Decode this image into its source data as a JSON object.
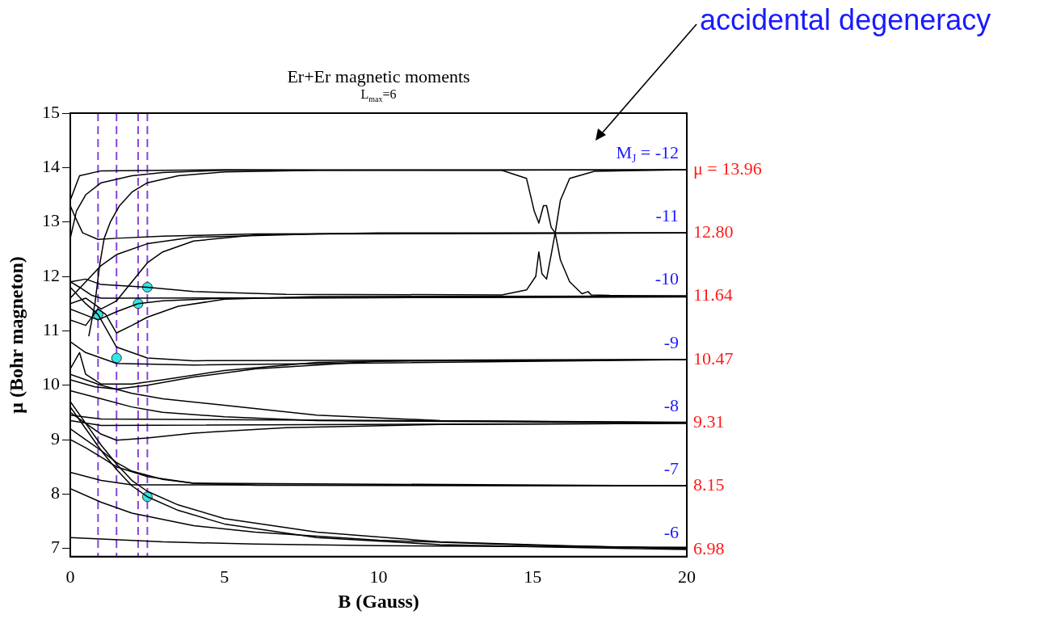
{
  "chart_data": {
    "type": "line",
    "title": "Er+Er magnetic moments",
    "subtitle": "L$_{max}$=6",
    "xlabel": "B (Gauss)",
    "ylabel": "μ (Bohr magneton)",
    "xlim": [
      0,
      20
    ],
    "xticks": [
      0,
      5,
      10,
      15,
      20
    ],
    "ylim": [
      6.85,
      15
    ],
    "yticks": [
      7,
      8,
      9,
      10,
      11,
      12,
      13,
      14,
      15
    ],
    "y2lim": [
      6.85,
      15
    ],
    "y2ticks": [
      {
        "value": 13.96,
        "label": "μ = 13.96"
      },
      {
        "value": 12.8,
        "label": "12.80"
      },
      {
        "value": 11.64,
        "label": "11.64"
      },
      {
        "value": 10.47,
        "label": "10.47"
      },
      {
        "value": 9.31,
        "label": "9.31"
      },
      {
        "value": 8.15,
        "label": "8.15"
      },
      {
        "value": 6.98,
        "label": "6.98"
      }
    ],
    "grid": false,
    "legend": false,
    "marker": "none",
    "line_style": "solid",
    "series": [
      {
        "color": "#000000",
        "x": [
          0,
          0.3,
          1,
          5,
          14,
          14.8,
          15.05,
          15.2,
          15.35,
          15.45,
          15.6,
          15.73,
          15.9,
          16.2,
          16.6,
          16.8,
          16.9,
          17.5,
          20
        ],
        "values": [
          13.4,
          13.85,
          13.94,
          13.96,
          13.95,
          13.8,
          13.2,
          12.98,
          13.3,
          13.3,
          12.9,
          12.8,
          12.3,
          11.9,
          11.68,
          11.72,
          11.66,
          11.65,
          11.64
        ]
      },
      {
        "color": "#000000",
        "x": [
          0,
          0.5,
          1,
          2.5,
          4,
          7,
          14,
          14.8,
          15.1,
          15.2,
          15.3,
          15.45,
          15.6,
          15.73,
          15.9,
          16.2,
          17,
          20
        ],
        "values": [
          11.9,
          11.95,
          11.85,
          11.8,
          11.72,
          11.67,
          11.66,
          11.75,
          12.0,
          12.45,
          12.05,
          11.95,
          12.4,
          12.8,
          13.4,
          13.8,
          13.93,
          13.96
        ]
      },
      {
        "color": "#000000",
        "x": [
          0,
          0.2,
          0.5,
          1,
          2,
          3,
          5,
          20
        ],
        "values": [
          12.7,
          13.2,
          13.5,
          13.72,
          13.85,
          13.91,
          13.95,
          13.96
        ]
      },
      {
        "color": "#000000",
        "x": [
          0.6,
          0.8,
          0.95,
          1.1,
          1.3,
          1.6,
          2,
          2.5,
          3.5,
          5,
          8,
          20
        ],
        "values": [
          10.9,
          11.5,
          12.2,
          12.7,
          13.0,
          13.3,
          13.55,
          13.72,
          13.85,
          13.92,
          13.95,
          13.96
        ]
      },
      {
        "color": "#000000",
        "x": [
          0,
          0.15,
          0.4,
          0.9,
          1.5,
          3,
          6,
          20
        ],
        "values": [
          13.3,
          13.1,
          12.8,
          12.68,
          12.7,
          12.74,
          12.78,
          12.8
        ]
      },
      {
        "color": "#000000",
        "x": [
          0,
          0.5,
          1,
          1.5,
          2.5,
          4,
          8,
          20
        ],
        "values": [
          11.6,
          11.9,
          12.2,
          12.4,
          12.6,
          12.72,
          12.78,
          12.8
        ]
      },
      {
        "color": "#000000",
        "x": [
          0,
          0.5,
          1,
          1.5,
          2,
          2.5,
          3,
          4,
          6,
          10,
          20
        ],
        "values": [
          11.5,
          11.6,
          11.4,
          11.55,
          11.9,
          12.25,
          12.45,
          12.65,
          12.76,
          12.8,
          12.8
        ]
      },
      {
        "color": "#000000",
        "x": [
          0,
          0.5,
          0.9,
          1.15,
          1.5,
          2,
          2.5,
          3.5,
          5,
          8,
          20
        ],
        "values": [
          11.2,
          11.1,
          11.4,
          11.3,
          10.96,
          11.1,
          11.25,
          11.45,
          11.58,
          11.63,
          11.64
        ]
      },
      {
        "color": "#000000",
        "x": [
          0,
          0.3,
          0.7,
          1,
          20
        ],
        "values": [
          11.9,
          11.8,
          11.65,
          11.6,
          11.62
        ]
      },
      {
        "color": "#000000",
        "x": [
          0,
          0.9,
          1.5,
          2.2,
          3,
          5,
          20
        ],
        "values": [
          11.4,
          11.2,
          11.35,
          11.5,
          11.55,
          11.6,
          11.63
        ]
      },
      {
        "color": "#000000",
        "x": [
          0,
          0.5,
          0.9,
          1.2,
          1.5,
          2.5,
          4,
          20
        ],
        "values": [
          11.8,
          11.5,
          11.3,
          11.0,
          10.7,
          10.5,
          10.45,
          10.47
        ]
      },
      {
        "color": "#000000",
        "x": [
          0,
          0.5,
          1.5,
          4,
          20
        ],
        "values": [
          10.8,
          10.6,
          10.4,
          10.37,
          10.47
        ]
      },
      {
        "color": "#000000",
        "x": [
          0,
          0.3,
          0.5,
          1,
          2,
          3,
          5,
          8,
          12,
          20
        ],
        "values": [
          10.3,
          10.6,
          10.2,
          10.02,
          10.02,
          10.1,
          10.27,
          10.42,
          10.46,
          10.47
        ]
      },
      {
        "color": "#000000",
        "x": [
          0,
          0.8,
          1.5,
          2.5,
          4,
          6,
          10,
          20
        ],
        "values": [
          10.1,
          9.97,
          9.93,
          10.0,
          10.15,
          10.3,
          10.44,
          10.47
        ]
      },
      {
        "color": "#000000",
        "x": [
          0,
          1,
          2,
          3,
          5,
          8,
          12,
          20
        ],
        "values": [
          10.2,
          10.0,
          9.85,
          9.75,
          9.63,
          9.45,
          9.35,
          9.31
        ]
      },
      {
        "color": "#000000",
        "x": [
          0,
          1,
          2,
          3,
          5,
          8,
          20
        ],
        "values": [
          9.9,
          9.75,
          9.6,
          9.5,
          9.42,
          9.35,
          9.31
        ]
      },
      {
        "color": "#000000",
        "x": [
          0,
          1,
          20
        ],
        "values": [
          9.45,
          9.38,
          9.32
        ]
      },
      {
        "color": "#000000",
        "x": [
          0,
          1,
          20
        ],
        "values": [
          9.35,
          9.26,
          9.3
        ]
      },
      {
        "color": "#000000",
        "x": [
          0,
          0.5,
          1,
          1.5,
          2.5,
          4,
          7,
          12,
          20
        ],
        "values": [
          9.5,
          9.3,
          9.1,
          8.99,
          9.03,
          9.12,
          9.22,
          9.28,
          9.3
        ]
      },
      {
        "color": "#000000",
        "x": [
          0,
          0.5,
          1,
          1.5,
          2,
          3,
          4,
          6,
          20
        ],
        "values": [
          9.2,
          9.0,
          8.8,
          8.58,
          8.42,
          8.27,
          8.2,
          8.16,
          8.15
        ]
      },
      {
        "color": "#000000",
        "x": [
          0,
          0.5,
          1,
          1.5,
          2.5,
          4,
          20
        ],
        "values": [
          9.0,
          8.85,
          8.68,
          8.5,
          8.32,
          8.2,
          8.15
        ]
      },
      {
        "color": "#000000",
        "x": [
          0,
          1,
          2,
          20
        ],
        "values": [
          8.4,
          8.25,
          8.17,
          8.15
        ]
      },
      {
        "color": "#000000",
        "x": [
          0,
          0.5,
          1,
          1.5,
          2,
          2.5,
          3.5,
          5,
          8,
          12,
          16,
          20
        ],
        "values": [
          9.6,
          9.2,
          8.8,
          8.45,
          8.15,
          7.95,
          7.7,
          7.45,
          7.2,
          7.07,
          7.02,
          6.98
        ]
      },
      {
        "color": "#000000",
        "x": [
          0,
          0.5,
          1,
          1.5,
          2,
          2.5,
          3.5,
          5,
          8,
          12,
          16,
          20
        ],
        "values": [
          9.7,
          9.3,
          8.9,
          8.55,
          8.25,
          8.05,
          7.8,
          7.55,
          7.3,
          7.12,
          7.05,
          7.0
        ]
      },
      {
        "color": "#000000",
        "x": [
          0,
          1,
          2,
          4,
          6,
          10,
          15,
          20
        ],
        "values": [
          8.1,
          7.85,
          7.65,
          7.42,
          7.3,
          7.15,
          7.06,
          7.0
        ]
      },
      {
        "color": "#000000",
        "x": [
          0,
          3,
          6,
          10,
          20
        ],
        "values": [
          7.2,
          7.12,
          7.08,
          7.05,
          7.02
        ]
      },
      {
        "type": "scatter",
        "marker": "circle",
        "color": "#33e6e6",
        "x": [
          0.9,
          1.5,
          2.2,
          2.5,
          2.5
        ],
        "values": [
          11.3,
          10.5,
          11.5,
          11.8,
          7.95
        ]
      }
    ],
    "ref_lines": [
      {
        "axis": "x",
        "value": 0.9,
        "color": "#8844dd",
        "line_style": "dashed"
      },
      {
        "axis": "x",
        "value": 1.5,
        "color": "#8844dd",
        "line_style": "dashed"
      },
      {
        "axis": "x",
        "value": 2.2,
        "color": "#8844dd",
        "line_style": "dashed"
      },
      {
        "axis": "x",
        "value": 2.5,
        "color": "#8844dd",
        "line_style": "dashed"
      }
    ],
    "annotations": [
      "accidental degeneracy",
      "M$_{J}$ = -12",
      "-11",
      "-10",
      "-9",
      "-8",
      "-7",
      "-6"
    ]
  }
}
